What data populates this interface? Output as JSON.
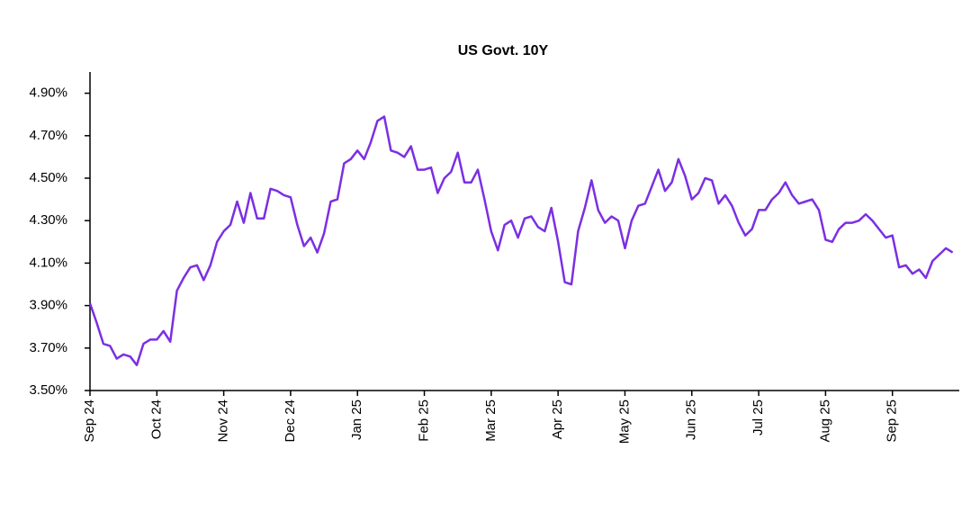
{
  "chart_data": {
    "type": "line",
    "title": "US Govt. 10Y",
    "color": "#7b2fe3",
    "categories": [
      "Sep 24",
      null,
      null,
      null,
      null,
      null,
      null,
      null,
      null,
      null,
      "Oct 24",
      null,
      null,
      null,
      null,
      null,
      null,
      null,
      null,
      null,
      "Nov 24",
      null,
      null,
      null,
      null,
      null,
      null,
      null,
      null,
      null,
      "Dec 24",
      null,
      null,
      null,
      null,
      null,
      null,
      null,
      null,
      null,
      "Jan 25",
      null,
      null,
      null,
      null,
      null,
      null,
      null,
      null,
      null,
      "Feb 25",
      null,
      null,
      null,
      null,
      null,
      null,
      null,
      null,
      null,
      "Mar 25",
      null,
      null,
      null,
      null,
      null,
      null,
      null,
      null,
      null,
      "Apr 25",
      null,
      null,
      null,
      null,
      null,
      null,
      null,
      null,
      null,
      "May 25",
      null,
      null,
      null,
      null,
      null,
      null,
      null,
      null,
      null,
      "Jun 25",
      null,
      null,
      null,
      null,
      null,
      null,
      null,
      null,
      null,
      "Jul 25",
      null,
      null,
      null,
      null,
      null,
      null,
      null,
      null,
      null,
      "Aug 25",
      null,
      null,
      null,
      null,
      null,
      null,
      null,
      null,
      null,
      "Sep 25",
      null,
      null,
      null,
      null,
      null,
      null,
      null,
      null,
      null
    ],
    "values": [
      3.91,
      3.82,
      3.72,
      3.71,
      3.65,
      3.67,
      3.66,
      3.62,
      3.72,
      3.74,
      3.74,
      3.78,
      3.73,
      3.97,
      4.03,
      4.08,
      4.09,
      4.02,
      4.09,
      4.2,
      4.25,
      4.28,
      4.39,
      4.29,
      4.43,
      4.31,
      4.31,
      4.45,
      4.44,
      4.42,
      4.41,
      4.28,
      4.18,
      4.22,
      4.15,
      4.24,
      4.39,
      4.4,
      4.57,
      4.59,
      4.63,
      4.59,
      4.67,
      4.77,
      4.79,
      4.63,
      4.62,
      4.6,
      4.65,
      4.54,
      4.54,
      4.55,
      4.43,
      4.5,
      4.53,
      4.62,
      4.48,
      4.48,
      4.54,
      4.4,
      4.25,
      4.16,
      4.28,
      4.3,
      4.22,
      4.31,
      4.32,
      4.27,
      4.25,
      4.36,
      4.2,
      4.01,
      4.0,
      4.25,
      4.36,
      4.49,
      4.35,
      4.29,
      4.32,
      4.3,
      4.17,
      4.3,
      4.37,
      4.38,
      4.46,
      4.54,
      4.44,
      4.48,
      4.59,
      4.51,
      4.4,
      4.43,
      4.5,
      4.49,
      4.38,
      4.42,
      4.37,
      4.29,
      4.23,
      4.26,
      4.35,
      4.35,
      4.4,
      4.43,
      4.48,
      4.42,
      4.38,
      4.39,
      4.4,
      4.35,
      4.21,
      4.2,
      4.26,
      4.29,
      4.29,
      4.3,
      4.33,
      4.3,
      4.26,
      4.22,
      4.23,
      4.08,
      4.09,
      4.05,
      4.07,
      4.03,
      4.11,
      4.14,
      4.17,
      4.15
    ],
    "ylim": [
      3.5,
      5.0
    ],
    "yticks": [
      {
        "value": 3.5,
        "label": "3.50%"
      },
      {
        "value": 3.7,
        "label": "3.70%"
      },
      {
        "value": 3.9,
        "label": "3.90%"
      },
      {
        "value": 4.1,
        "label": "4.10%"
      },
      {
        "value": 4.3,
        "label": "4.30%"
      },
      {
        "value": 4.5,
        "label": "4.50%"
      },
      {
        "value": 4.7,
        "label": "4.70%"
      },
      {
        "value": 4.9,
        "label": "4.90%"
      }
    ],
    "grid": false
  }
}
